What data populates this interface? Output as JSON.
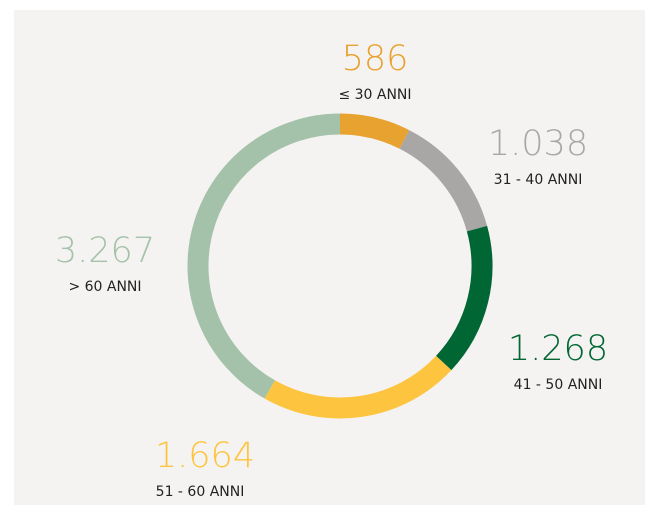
{
  "chart_data": {
    "type": "donut",
    "categories": [
      "≤ 30 ANNI",
      "31 - 40 ANNI",
      "41 - 50 ANNI",
      "51 - 60 ANNI",
      "> 60 ANNI"
    ],
    "values": [
      586,
      1038,
      1268,
      1664,
      3267
    ],
    "value_labels": [
      "586",
      "1.038",
      "1.268",
      "1.664",
      "3.267"
    ],
    "colors": [
      "#e8a22f",
      "#a9a6a6",
      "#006633",
      "#fdc43f",
      "#a3c2a9"
    ]
  }
}
